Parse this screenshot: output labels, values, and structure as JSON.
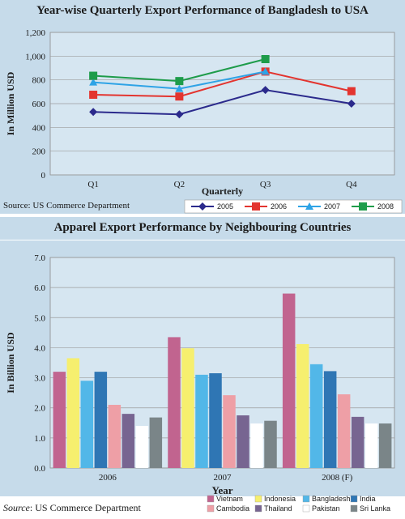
{
  "chart_data": [
    {
      "type": "line",
      "title": "Year-wise Quarterly Export Performance of  Bangladesh to USA",
      "xlabel": "Quarterly",
      "ylabel": "In Million USD",
      "categories": [
        "Q1",
        "Q2",
        "Q3",
        "Q4"
      ],
      "ylim": [
        0,
        1200
      ],
      "yticks": [
        "0",
        "200",
        "400",
        "600",
        "800",
        "1,000",
        "1,200"
      ],
      "ytick_values": [
        0,
        200,
        400,
        600,
        800,
        1000,
        1200
      ],
      "grid": true,
      "legend": "bottom",
      "source": "Source: US Commerce Department",
      "series": [
        {
          "name": "2005",
          "color": "#2b2a8c",
          "marker": "diamond",
          "values": [
            530,
            510,
            715,
            600
          ]
        },
        {
          "name": "2006",
          "color": "#e3342f",
          "marker": "square",
          "values": [
            675,
            660,
            870,
            705
          ]
        },
        {
          "name": "2007",
          "color": "#2ea3e6",
          "marker": "triangle",
          "values": [
            780,
            725,
            870,
            null
          ]
        },
        {
          "name": "2008",
          "color": "#1e9c4a",
          "marker": "square",
          "values": [
            835,
            790,
            975,
            null
          ]
        }
      ]
    },
    {
      "type": "bar",
      "title": "Apparel Export Performance by Neighbouring Countries",
      "xlabel": "Year",
      "ylabel": "In Billion USD",
      "categories": [
        "2006",
        "2007",
        "2008 (F)"
      ],
      "ylim": [
        0,
        7
      ],
      "yticks": [
        "0.0",
        "1.0",
        "2.0",
        "3.0",
        "4.0",
        "5.0",
        "6.0",
        "7.0"
      ],
      "ytick_values": [
        0,
        1,
        2,
        3,
        4,
        5,
        6,
        7
      ],
      "grid": true,
      "legend": "bottom",
      "source_italic": "Source",
      "source_rest": ": US Commerce Department",
      "series": [
        {
          "name": "Vietnam",
          "color": "#c1648f",
          "values": [
            3.2,
            4.35,
            5.8
          ]
        },
        {
          "name": "Indonesia",
          "color": "#f6ef6e",
          "values": [
            3.65,
            3.98,
            4.12
          ]
        },
        {
          "name": "Bangladesh",
          "color": "#52b7e8",
          "values": [
            2.9,
            3.1,
            3.45
          ]
        },
        {
          "name": "India",
          "color": "#2f76b4",
          "values": [
            3.2,
            3.15,
            3.22
          ]
        },
        {
          "name": "Cambodia",
          "color": "#ee9fa6",
          "values": [
            2.1,
            2.42,
            2.45
          ]
        },
        {
          "name": "Thailand",
          "color": "#776591",
          "values": [
            1.8,
            1.75,
            1.7
          ]
        },
        {
          "name": "Pakistan",
          "color": "#ffffff",
          "values": [
            1.4,
            1.48,
            1.48
          ]
        },
        {
          "name": "Sri Lanka",
          "color": "#7a8588",
          "values": [
            1.68,
            1.57,
            1.48
          ]
        }
      ]
    }
  ]
}
